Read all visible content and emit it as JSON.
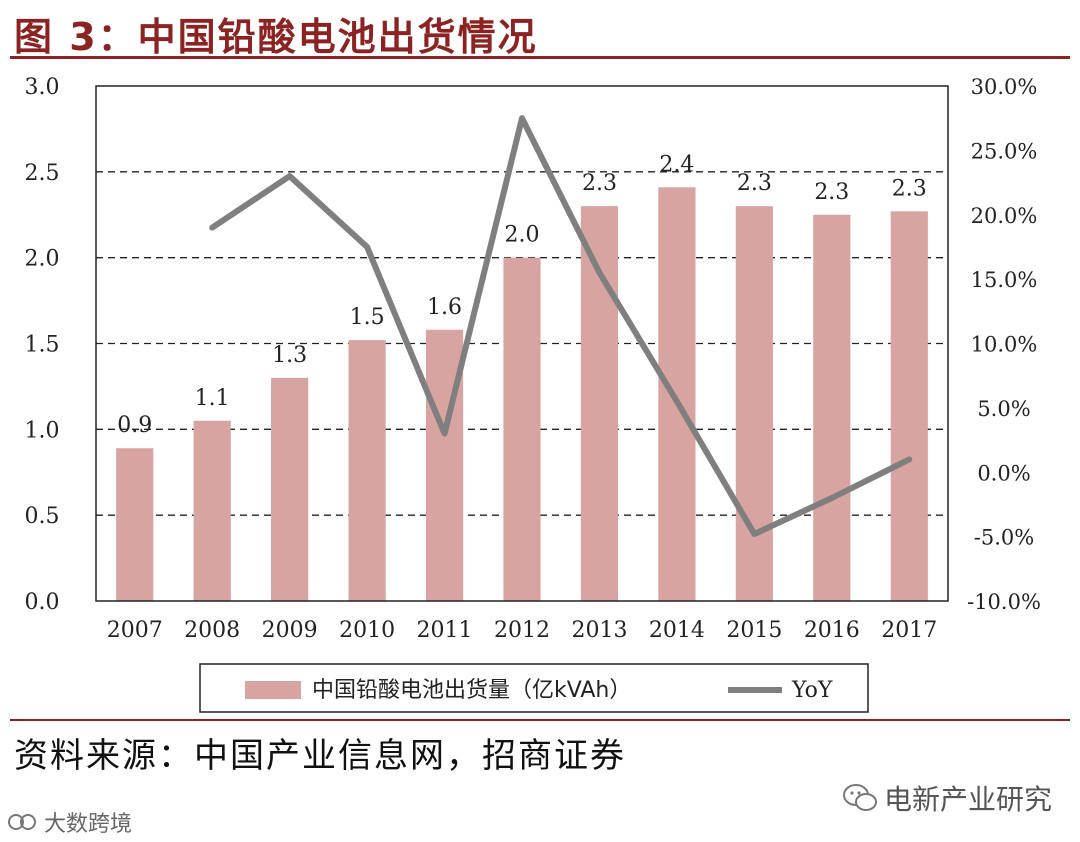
{
  "header": {
    "title": "图 3：中国铅酸电池出货情况"
  },
  "footer": {
    "source": "资料来源：中国产业信息网，招商证券",
    "watermark_right": "电新产业研究",
    "watermark_left": "大数跨境"
  },
  "colors": {
    "bar": "#d8a4a2",
    "line": "#7f7f7f",
    "brand": "#8a2321"
  },
  "chart_data": {
    "type": "bar+line",
    "categories": [
      "2007",
      "2008",
      "2009",
      "2010",
      "2011",
      "2012",
      "2013",
      "2014",
      "2015",
      "2016",
      "2017"
    ],
    "series": [
      {
        "name": "中国铅酸电池出货量（亿kVAh）",
        "type": "bar",
        "axis": "left",
        "values": [
          0.89,
          1.05,
          1.3,
          1.52,
          1.58,
          2.0,
          2.3,
          2.41,
          2.3,
          2.25,
          2.27
        ],
        "labels": [
          "0.9",
          "1.1",
          "1.3",
          "1.5",
          "1.6",
          "2.0",
          "2.3",
          "2.4",
          "2.3",
          "2.3",
          "2.3"
        ]
      },
      {
        "name": "YoY",
        "type": "line",
        "axis": "right",
        "values": [
          null,
          19.0,
          23.0,
          17.5,
          3.0,
          27.5,
          15.5,
          5.5,
          -4.8,
          -2.0,
          1.0
        ]
      }
    ],
    "y_left": {
      "min": 0,
      "max": 3.0,
      "ticks": [
        "0.0",
        "0.5",
        "1.0",
        "1.5",
        "2.0",
        "2.5",
        "3.0"
      ]
    },
    "y_right": {
      "min": -10,
      "max": 30,
      "ticks": [
        "-10.0%",
        "-5.0%",
        "0.0%",
        "5.0%",
        "10.0%",
        "15.0%",
        "20.0%",
        "25.0%",
        "30.0%"
      ]
    },
    "grid": "dashed-horizontal",
    "legend_position": "bottom"
  }
}
